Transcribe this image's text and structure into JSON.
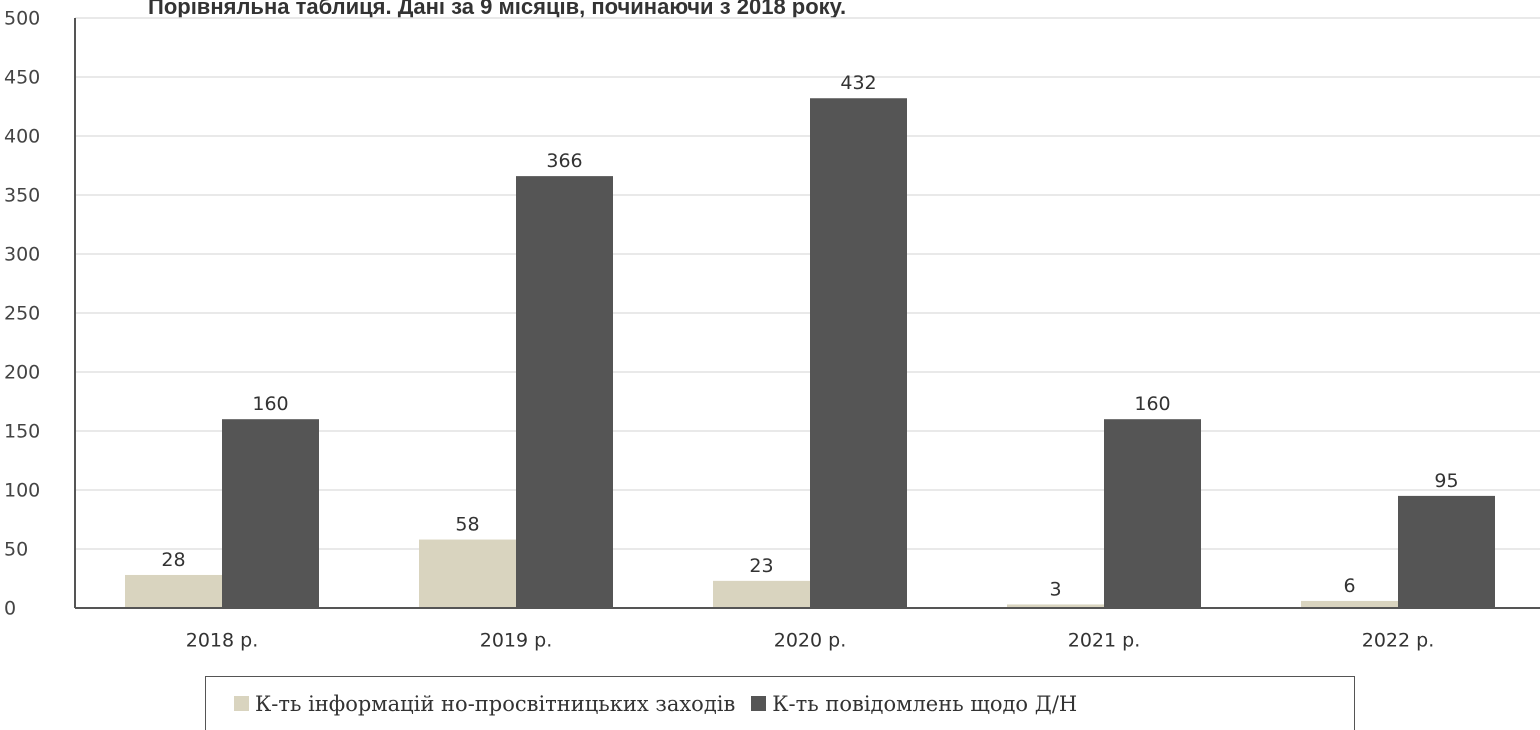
{
  "colors": {
    "series1": "#d9d4bf",
    "series2": "#555555",
    "grid": "#e2e2e2",
    "axis": "#555555"
  },
  "chart_data": {
    "type": "bar",
    "title": "Порівняльна таблиця. Дані за 9 місяців, починаючи з 2018 року.",
    "categories": [
      "2018 р.",
      "2019 р.",
      "2020 р.",
      "2021 р.",
      "2022 р."
    ],
    "series": [
      {
        "name": "К-ть інформацій но-просвітницьких заходів",
        "values": [
          28,
          58,
          23,
          3,
          6
        ],
        "labels": [
          "28",
          "58",
          "23",
          "3",
          "6"
        ]
      },
      {
        "name": "К-ть повідомлень щодо Д/Н",
        "values": [
          160,
          366,
          432,
          160,
          95
        ],
        "labels": [
          "160",
          "366",
          "432",
          "160",
          "95"
        ]
      }
    ],
    "ylim": [
      0,
      500
    ],
    "yticks": [
      0,
      50,
      100,
      150,
      200,
      250,
      300,
      350,
      400,
      450,
      500
    ],
    "ytick_labels": [
      "0",
      "50",
      "100",
      "150",
      "200",
      "250",
      "300",
      "350",
      "400",
      "450",
      "500"
    ],
    "grid": true,
    "legend_position": "bottom"
  }
}
